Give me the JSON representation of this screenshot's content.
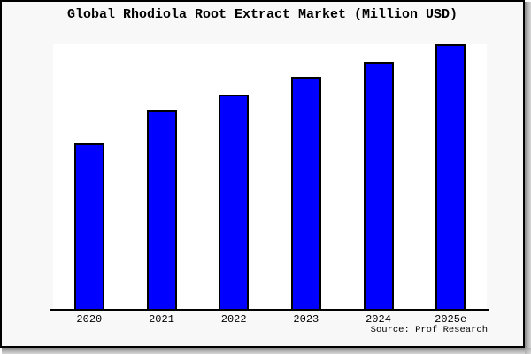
{
  "title": "Global Rhodiola Root Extract Market (Million USD)",
  "source_note": "Source: Prof Research",
  "colors": {
    "figure_background": "#f8f8f8",
    "plot_background": "#ffffff",
    "bar_fill": "#0000ff",
    "bar_border": "#000000",
    "frame_border": "#000000",
    "text": "#000000"
  },
  "chart_data": {
    "type": "bar",
    "title": "Global Rhodiola Root Extract Market (Million USD)",
    "categories": [
      "2020",
      "2021",
      "2022",
      "2023",
      "2024",
      "2025e"
    ],
    "values_pct_of_max": [
      62.5,
      75.3,
      81.0,
      87.6,
      93.3,
      100
    ],
    "value_axis_note": "no y-axis ticks, gridlines or value labels shown; values are relative bar heights",
    "xlabel": "",
    "ylabel": "",
    "grid": false,
    "legend": false,
    "annotation": "Source: Prof Research"
  }
}
